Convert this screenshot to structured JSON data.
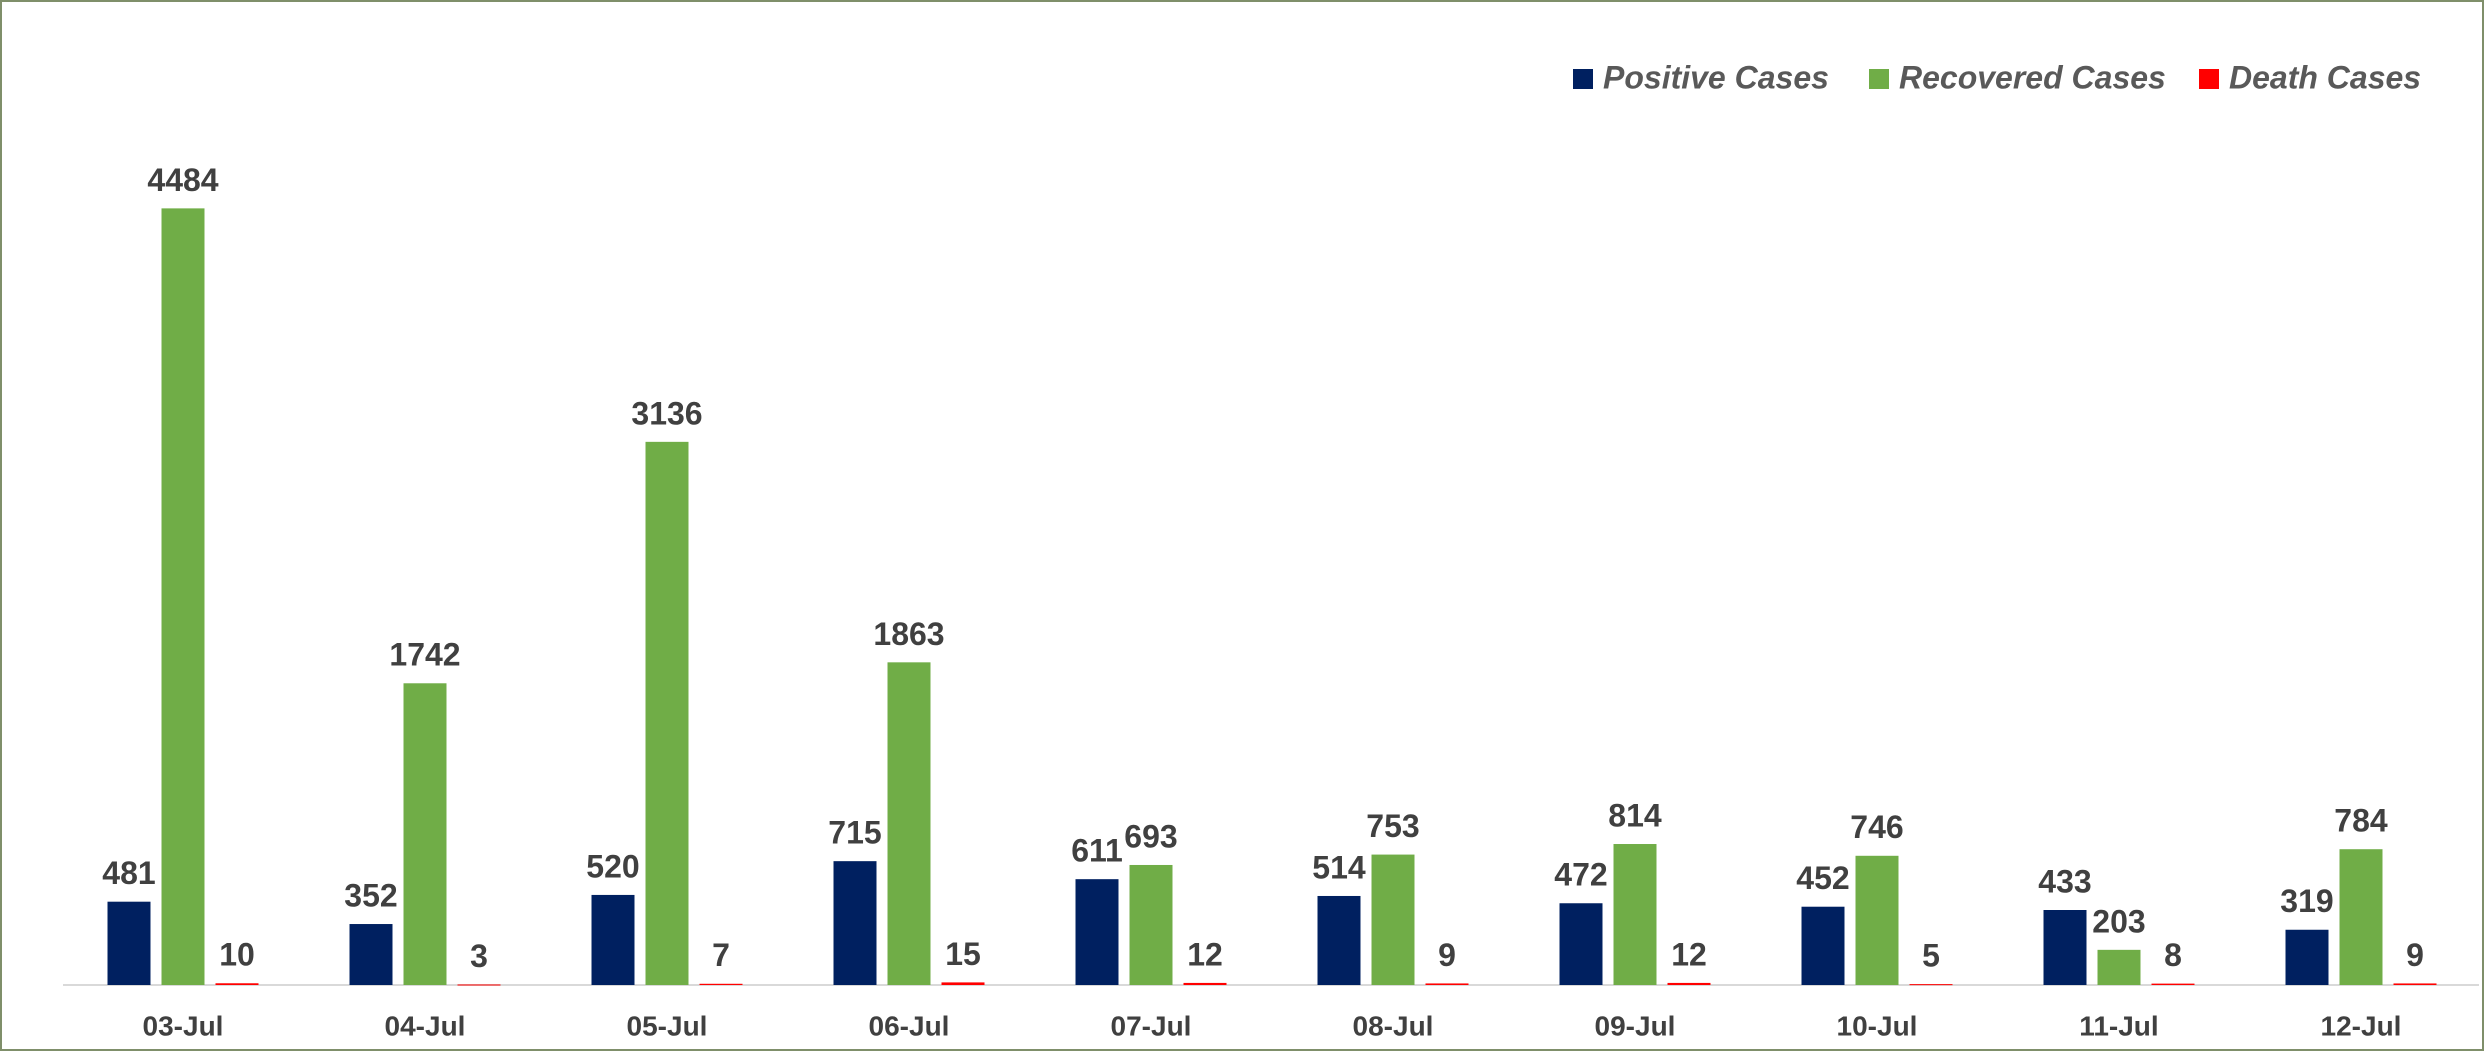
{
  "chart_data": {
    "type": "bar",
    "categories": [
      "03-Jul",
      "04-Jul",
      "05-Jul",
      "06-Jul",
      "07-Jul",
      "08-Jul",
      "09-Jul",
      "10-Jul",
      "11-Jul",
      "12-Jul"
    ],
    "series": [
      {
        "name": "Positive Cases",
        "color": "#002060",
        "values": [
          481,
          352,
          520,
          715,
          611,
          514,
          472,
          452,
          433,
          319
        ]
      },
      {
        "name": "Recovered Cases",
        "color": "#70ad47",
        "values": [
          4484,
          1742,
          3136,
          1863,
          693,
          753,
          814,
          746,
          203,
          784
        ]
      },
      {
        "name": "Death Cases",
        "color": "#ff0000",
        "values": [
          10,
          3,
          7,
          15,
          12,
          9,
          12,
          5,
          8,
          9
        ]
      }
    ],
    "ylim": [
      0,
      5000
    ],
    "legend": "top-right"
  }
}
